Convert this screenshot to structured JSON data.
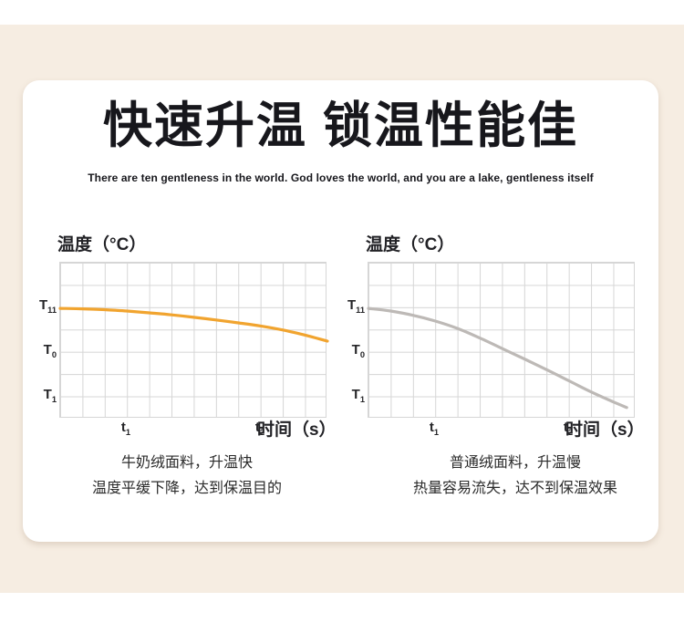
{
  "colors": {
    "band_background": "#f6ede2",
    "card_background": "#ffffff",
    "grid_line": "#d6d6d6",
    "warm_curve": "#f1a42f",
    "plain_curve": "#bdb9b6",
    "title_text": "#17171c"
  },
  "header": {
    "title": "快速升温 锁温性能佳",
    "subtitle": "There are ten gentleness in the world. God loves the world, and you are a lake, gentleness itself"
  },
  "chart_data": [
    {
      "type": "line",
      "title": "温度（°C）",
      "xlabel": "时间（s）",
      "ylabel": "温度",
      "grid": {
        "cols": 12,
        "rows": 7,
        "visible": true
      },
      "x_ticks": [
        {
          "base": "t",
          "sub": "1",
          "position": 3
        },
        {
          "base": "t",
          "sub": "2",
          "position": 9
        }
      ],
      "y_ticks": [
        {
          "base": "T",
          "sub": "11",
          "position": 2
        },
        {
          "base": "T",
          "sub": "0",
          "position": 4
        },
        {
          "base": "T",
          "sub": "1",
          "position": 6
        }
      ],
      "series": [
        {
          "name": "牛奶绒面料",
          "color": "#f1a42f",
          "points": [
            [
              0,
              2.05
            ],
            [
              1,
              2.07
            ],
            [
              2,
              2.11
            ],
            [
              3,
              2.17
            ],
            [
              4,
              2.25
            ],
            [
              5,
              2.34
            ],
            [
              6,
              2.45
            ],
            [
              7,
              2.57
            ],
            [
              8,
              2.7
            ],
            [
              9,
              2.84
            ],
            [
              10,
              3.02
            ],
            [
              11,
              3.25
            ],
            [
              12,
              3.52
            ]
          ]
        }
      ],
      "caption": [
        "牛奶绒面料，升温快",
        "温度平缓下降，达到保温目的"
      ]
    },
    {
      "type": "line",
      "title": "温度（°C）",
      "xlabel": "时间（s）",
      "ylabel": "温度",
      "grid": {
        "cols": 12,
        "rows": 7,
        "visible": true
      },
      "x_ticks": [
        {
          "base": "t",
          "sub": "1",
          "position": 3
        },
        {
          "base": "t",
          "sub": "2",
          "position": 9
        }
      ],
      "y_ticks": [
        {
          "base": "T",
          "sub": "11",
          "position": 2
        },
        {
          "base": "T",
          "sub": "0",
          "position": 4
        },
        {
          "base": "T",
          "sub": "1",
          "position": 6
        }
      ],
      "series": [
        {
          "name": "普通绒面料",
          "color": "#bdb9b6",
          "points": [
            [
              0,
              2.05
            ],
            [
              1,
              2.17
            ],
            [
              2,
              2.36
            ],
            [
              3,
              2.62
            ],
            [
              4,
              2.95
            ],
            [
              5,
              3.38
            ],
            [
              6,
              3.85
            ],
            [
              7,
              4.32
            ],
            [
              8,
              4.8
            ],
            [
              9,
              5.3
            ],
            [
              10,
              5.8
            ],
            [
              11,
              6.25
            ],
            [
              11.6,
              6.5
            ]
          ]
        }
      ],
      "caption": [
        "普通绒面料，升温慢",
        "热量容易流失，达不到保温效果"
      ]
    }
  ]
}
